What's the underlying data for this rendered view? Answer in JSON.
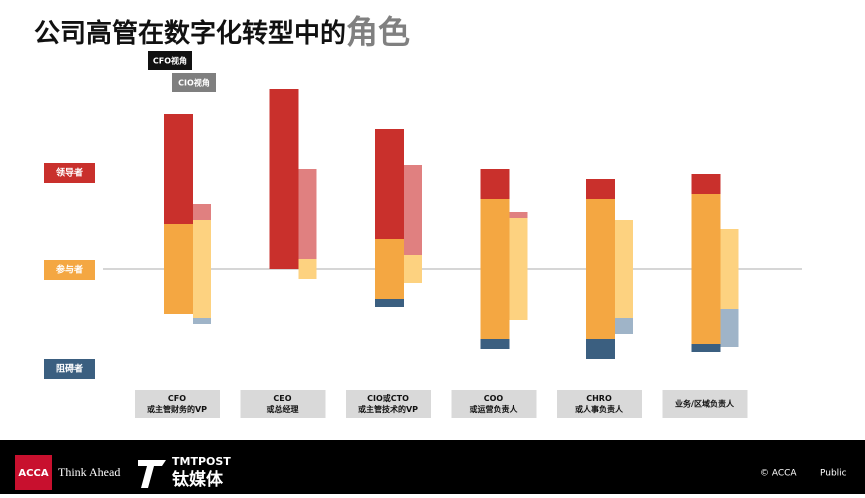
{
  "chart_data": {
    "type": "diverging-bar",
    "title": "公司高管在数字化转型中的",
    "title_highlight": "角色",
    "categories": [
      [
        "CFO",
        "或主管财务的VP"
      ],
      [
        "CEO",
        "或总经理"
      ],
      [
        "CIO或CTO",
        "或主管技术的VP"
      ],
      [
        "COO",
        "或运营负责人"
      ],
      [
        "CHRO",
        "或人事负责人"
      ],
      [
        "业务/区域负责人"
      ]
    ],
    "levels": [
      {
        "name": "领导者",
        "color": "#c9302c"
      },
      {
        "name": "参与者",
        "color": "#f4a742"
      },
      {
        "name": "阻碍者",
        "color": "#3b5f80"
      }
    ],
    "series": [
      {
        "name": "CFO视角",
        "color": "#111111",
        "stacks": [
          {
            "values": [
              55,
              90,
              55,
              15,
              10,
              10
            ],
            "color": "#c9302c"
          },
          {
            "values": [
              45,
              0,
              30,
              70,
              70,
              75
            ],
            "color": "#f4a742"
          },
          {
            "values": [
              0,
              0,
              4,
              5,
              10,
              4
            ],
            "color": "#3b5f80"
          }
        ]
      },
      {
        "name": "CIO视角",
        "color": "#7f7f7f",
        "stacks": [
          {
            "values": [
              8,
              45,
              45,
              3,
              0,
              0
            ],
            "color": "#e08080"
          },
          {
            "values": [
              49,
              10,
              14,
              51,
              49,
              40
            ],
            "color": "#fdd280"
          },
          {
            "values": [
              3,
              0,
              0,
              0,
              8,
              19
            ],
            "color": "#9fb4c8"
          }
        ]
      }
    ],
    "footer": {
      "brand": "ACCA",
      "tagline": "Think Ahead",
      "partner": "TMTPOST",
      "partner_cn": "钛媒体",
      "copyright": "© ACCA",
      "classification": "Public"
    }
  }
}
